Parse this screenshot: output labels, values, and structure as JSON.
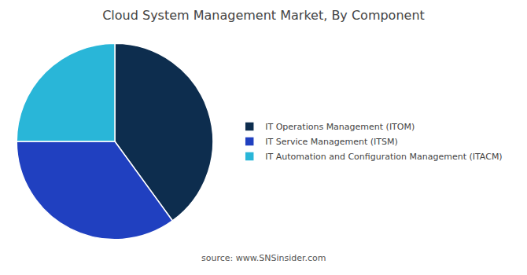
{
  "chart_data": {
    "type": "pie",
    "title": "Cloud System Management Market, By Component",
    "categories": [
      "IT Operations Management (ITOM)",
      "IT Service Management (ITSM)",
      "IT Automation and Configuration Management (ITACM)"
    ],
    "values": [
      40,
      35,
      25
    ],
    "colors": [
      "#0d2d4e",
      "#2040c0",
      "#29b6d8"
    ],
    "annotations": [
      "source: www.SNSinsider.com"
    ],
    "legend": "right",
    "data_labels": false
  }
}
